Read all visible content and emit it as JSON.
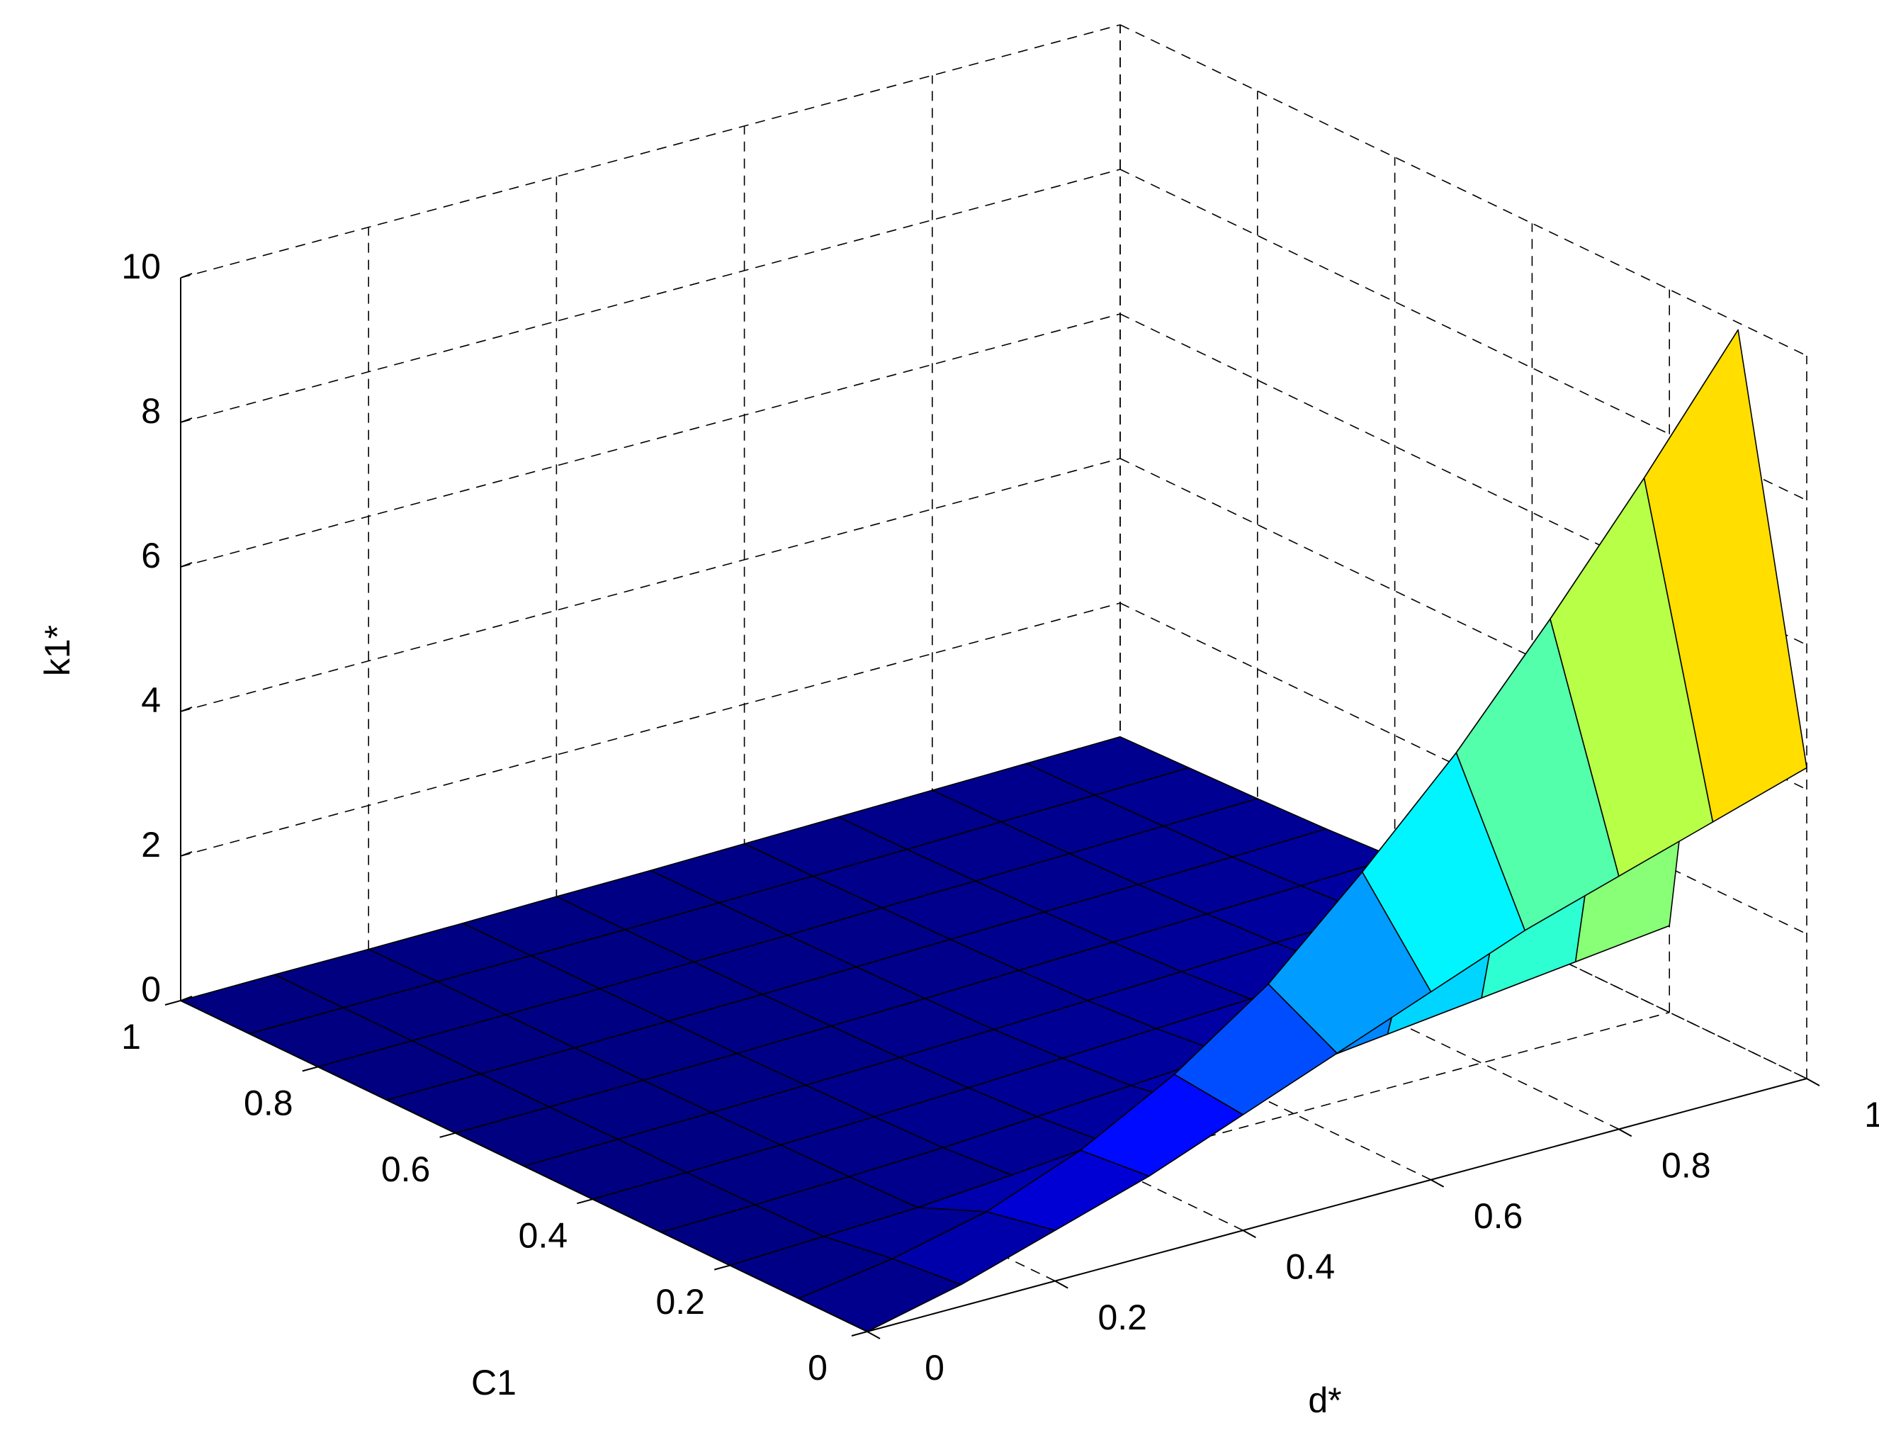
{
  "chart_data": {
    "type": "surface",
    "xlabel": "d*",
    "ylabel": "C1",
    "zlabel": "k1*",
    "x": [
      0,
      0.1,
      0.2,
      0.3,
      0.4,
      0.5,
      0.6,
      0.7,
      0.8,
      0.9,
      1
    ],
    "y": [
      0,
      0.1,
      0.2,
      0.3,
      0.4,
      0.5,
      0.6,
      0.7,
      0.8,
      0.9,
      1
    ],
    "z": [
      [
        0,
        0.3,
        0.7,
        1.1,
        1.6,
        2.1,
        2.6,
        3.1,
        3.5,
        3.9,
        4.3
      ],
      [
        0,
        0.2,
        0.5,
        1.0,
        1.7,
        2.6,
        3.8,
        5.1,
        6.6,
        8.2,
        9.9
      ],
      [
        0,
        0.05,
        0.1,
        0.2,
        0.3,
        0.45,
        0.6,
        0.75,
        0.9,
        1.05,
        1.2
      ],
      [
        0,
        0.03,
        0.07,
        0.12,
        0.2,
        0.28,
        0.37,
        0.46,
        0.55,
        0.65,
        0.75
      ],
      [
        0,
        0.02,
        0.05,
        0.09,
        0.14,
        0.2,
        0.26,
        0.32,
        0.38,
        0.45,
        0.52
      ],
      [
        0,
        0.02,
        0.04,
        0.07,
        0.1,
        0.14,
        0.19,
        0.24,
        0.29,
        0.34,
        0.39
      ],
      [
        0,
        0.01,
        0.03,
        0.05,
        0.08,
        0.11,
        0.15,
        0.19,
        0.23,
        0.27,
        0.31
      ],
      [
        0,
        0.01,
        0.02,
        0.04,
        0.06,
        0.09,
        0.12,
        0.15,
        0.18,
        0.21,
        0.25
      ],
      [
        0,
        0.01,
        0.02,
        0.03,
        0.05,
        0.07,
        0.1,
        0.12,
        0.15,
        0.18,
        0.21
      ],
      [
        0,
        0.01,
        0.02,
        0.03,
        0.04,
        0.06,
        0.08,
        0.1,
        0.13,
        0.15,
        0.18
      ],
      [
        0,
        0.01,
        0.01,
        0.02,
        0.04,
        0.05,
        0.07,
        0.09,
        0.11,
        0.13,
        0.15
      ]
    ],
    "xlim": [
      0,
      1
    ],
    "ylim": [
      0,
      1
    ],
    "zlim": [
      0,
      10
    ],
    "xticks": [
      0,
      0.2,
      0.4,
      0.6,
      0.8,
      1
    ],
    "yticks": [
      0,
      0.2,
      0.4,
      0.6,
      0.8,
      1
    ],
    "zticks": [
      0,
      2,
      4,
      6,
      8,
      10
    ],
    "grid": true,
    "colormap": "jet"
  }
}
